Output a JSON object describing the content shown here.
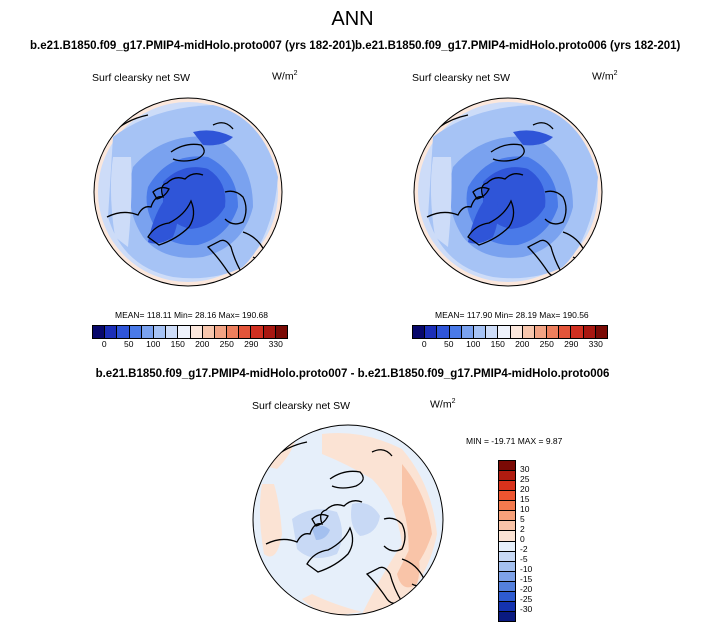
{
  "title": "ANN",
  "panels": [
    {
      "case": "b.e21.B1850.f09_g17.PMIP4-midHolo.proto007 (yrs 182-201)",
      "variable": "Surf clearsky net SW",
      "units": "W/m",
      "units_exp": "2",
      "stats": "MEAN= 118.11   Min=   28.16   Max= 190.68"
    },
    {
      "case": "b.e21.B1850.f09_g17.PMIP4-midHolo.proto006 (yrs 182-201)",
      "variable": "Surf clearsky net SW",
      "units": "W/m",
      "units_exp": "2",
      "stats": "MEAN= 117.90   Min=   28.19   Max= 190.56"
    }
  ],
  "colorbar": {
    "ticks": [
      "0",
      "50",
      "100",
      "150",
      "200",
      "250",
      "290",
      "330"
    ],
    "colors": [
      "#08086b",
      "#1c2fb8",
      "#2f55d8",
      "#4a7ae8",
      "#7aa2ef",
      "#a6c3f5",
      "#cddcf8",
      "#eef2fb",
      "#fbe7dc",
      "#f7c6ad",
      "#f2a384",
      "#ed7f5d",
      "#e3553a",
      "#cf2f20",
      "#a81710",
      "#7a0a05"
    ]
  },
  "difference": {
    "title": "b.e21.B1850.f09_g17.PMIP4-midHolo.proto007 - b.e21.B1850.f09_g17.PMIP4-midHolo.proto006",
    "variable": "Surf clearsky net SW",
    "units": "W/m",
    "units_exp": "2",
    "stats": "MIN = -19.71 MAX =   9.87",
    "colorbar": {
      "ticks": [
        "30",
        "25",
        "20",
        "15",
        "10",
        "5",
        "2",
        "0",
        "-2",
        "-5",
        "-10",
        "-15",
        "-20",
        "-25",
        "-30"
      ],
      "colors": [
        "#7a0a05",
        "#b01c10",
        "#d8321c",
        "#ee5530",
        "#f47a4e",
        "#f7a17a",
        "#f9c4a8",
        "#fbe3d4",
        "#e6effa",
        "#c8d9f5",
        "#a4c0ef",
        "#7ea2e8",
        "#5480dd",
        "#2e5bd0",
        "#1433b0",
        "#0a1a80"
      ]
    }
  }
}
